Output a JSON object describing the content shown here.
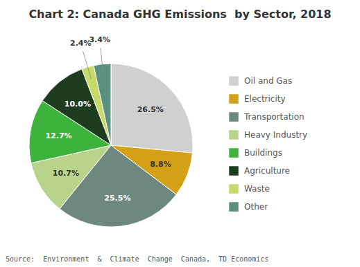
{
  "chart_data": {
    "type": "pie",
    "title": "Chart 2: Canada GHG Emissions  by Sector, 2018",
    "annotations": [
      "Source:  Environment  &  Climate  Change  Canada,  TD Economics"
    ],
    "categories": [
      "Oil and Gas",
      "Electricity",
      "Transportation",
      "Heavy Industry",
      "Buildings",
      "Agriculture",
      "Waste",
      "Other"
    ],
    "values": [
      26.5,
      8.8,
      25.5,
      10.7,
      12.7,
      10.0,
      2.4,
      3.4
    ],
    "value_labels": [
      "26.5%",
      "8.8%",
      "25.5%",
      "10.7%",
      "12.7%",
      "10.0%",
      "2.4%",
      "3.4%"
    ],
    "colors": [
      "#d0d0d0",
      "#d4a017",
      "#6e8880",
      "#b8d48a",
      "#3db33d",
      "#1e3d1e",
      "#c8d96a",
      "#5a9080"
    ],
    "data_labels": true,
    "legend": "right"
  }
}
